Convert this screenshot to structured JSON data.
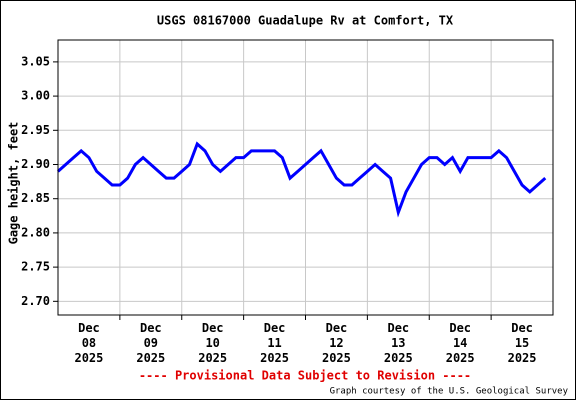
{
  "chart_data": {
    "type": "line",
    "title": "USGS 08167000 Guadalupe Rv at Comfort, TX",
    "y_label": "Gage height, feet",
    "footer_note": "---- Provisional Data Subject to Revision ----",
    "credit": "Graph courtesy of the U.S. Geological Survey",
    "xlim": [
      "2025-12-08T00:00",
      "2025-12-16T00:00"
    ],
    "ylim": [
      2.68,
      3.082
    ],
    "yticks": [
      {
        "value": 2.7,
        "label": "2.70"
      },
      2.75,
      {
        "value": 2.8,
        "label": "2.80"
      },
      2.85,
      {
        "value": 2.9,
        "label": "2.90"
      },
      2.95,
      {
        "value": 3.0,
        "label": "3.00"
      },
      3.05
    ],
    "xticks": [
      {
        "value": "2025-12-08T12:00",
        "label": "Dec 08 2025"
      },
      {
        "value": "2025-12-09T12:00",
        "label": "Dec 09 2025"
      },
      {
        "value": "2025-12-10T12:00",
        "label": "Dec 10 2025"
      },
      {
        "value": "2025-12-11T12:00",
        "label": "Dec 11 2025"
      },
      {
        "value": "2025-12-12T12:00",
        "label": "Dec 12 2025"
      },
      {
        "value": "2025-12-13T12:00",
        "label": "Dec 13 2025"
      },
      {
        "value": "2025-12-14T12:00",
        "label": "Dec 14 2025"
      },
      {
        "value": "2025-12-15T12:00",
        "label": "Dec 15 2025"
      }
    ],
    "xgrid": [
      "2025-12-09T00:00",
      "2025-12-10T00:00",
      "2025-12-11T00:00",
      "2025-12-12T00:00",
      "2025-12-13T00:00",
      "2025-12-14T00:00",
      "2025-12-15T00:00"
    ],
    "grid": true,
    "color": "#0000ff",
    "x": [
      "2025-12-08T00:00",
      "2025-12-08T03:00",
      "2025-12-08T06:00",
      "2025-12-08T09:00",
      "2025-12-08T12:00",
      "2025-12-08T15:00",
      "2025-12-08T18:00",
      "2025-12-08T21:00",
      "2025-12-09T00:00",
      "2025-12-09T03:00",
      "2025-12-09T06:00",
      "2025-12-09T09:00",
      "2025-12-09T12:00",
      "2025-12-09T15:00",
      "2025-12-09T18:00",
      "2025-12-09T21:00",
      "2025-12-10T00:00",
      "2025-12-10T03:00",
      "2025-12-10T06:00",
      "2025-12-10T09:00",
      "2025-12-10T12:00",
      "2025-12-10T15:00",
      "2025-12-10T18:00",
      "2025-12-10T21:00",
      "2025-12-11T00:00",
      "2025-12-11T03:00",
      "2025-12-11T06:00",
      "2025-12-11T09:00",
      "2025-12-11T12:00",
      "2025-12-11T15:00",
      "2025-12-11T18:00",
      "2025-12-11T21:00",
      "2025-12-12T00:00",
      "2025-12-12T03:00",
      "2025-12-12T06:00",
      "2025-12-12T09:00",
      "2025-12-12T12:00",
      "2025-12-12T15:00",
      "2025-12-12T18:00",
      "2025-12-12T21:00",
      "2025-12-13T00:00",
      "2025-12-13T03:00",
      "2025-12-13T06:00",
      "2025-12-13T09:00",
      "2025-12-13T12:00",
      "2025-12-13T15:00",
      "2025-12-13T18:00",
      "2025-12-13T21:00",
      "2025-12-14T00:00",
      "2025-12-14T03:00",
      "2025-12-14T06:00",
      "2025-12-14T09:00",
      "2025-12-14T12:00",
      "2025-12-14T15:00",
      "2025-12-14T18:00",
      "2025-12-14T21:00",
      "2025-12-15T00:00",
      "2025-12-15T03:00",
      "2025-12-15T06:00",
      "2025-12-15T09:00",
      "2025-12-15T12:00",
      "2025-12-15T15:00",
      "2025-12-15T18:00",
      "2025-12-15T21:00"
    ],
    "values": [
      2.89,
      2.9,
      2.91,
      2.92,
      2.91,
      2.89,
      2.88,
      2.87,
      2.87,
      2.88,
      2.9,
      2.91,
      2.9,
      2.89,
      2.88,
      2.88,
      2.89,
      2.9,
      2.93,
      2.92,
      2.9,
      2.89,
      2.9,
      2.91,
      2.91,
      2.92,
      2.92,
      2.92,
      2.92,
      2.91,
      2.88,
      2.89,
      2.9,
      2.91,
      2.92,
      2.9,
      2.88,
      2.87,
      2.87,
      2.88,
      2.89,
      2.9,
      2.89,
      2.88,
      2.83,
      2.86,
      2.88,
      2.9,
      2.91,
      2.91,
      2.9,
      2.91,
      2.89,
      2.91,
      2.91,
      2.91,
      2.91,
      2.92,
      2.91,
      2.89,
      2.87,
      2.86,
      2.87,
      2.88
    ]
  }
}
